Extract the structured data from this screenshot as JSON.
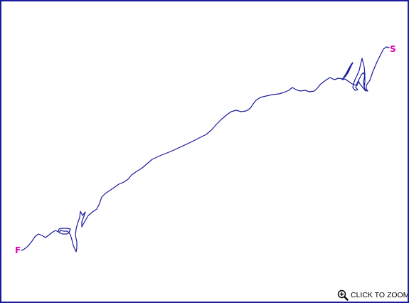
{
  "map": {
    "colors": {
      "border": "#1a1a9e",
      "route": "#1a1a9e",
      "marker": "#e000b0",
      "background": "#ffffff"
    },
    "start_marker": {
      "label": "S"
    },
    "finish_marker": {
      "label": "F"
    },
    "zoom_control": {
      "label": "CLICK TO ZOOM",
      "icon": "zoom-in-magnifier-icon"
    }
  }
}
